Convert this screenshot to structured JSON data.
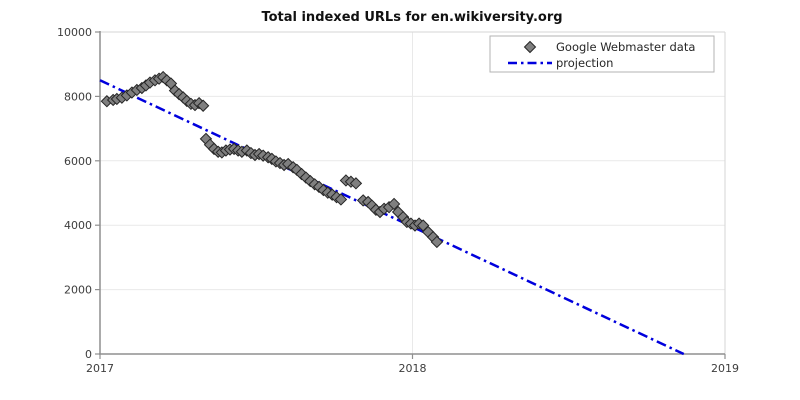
{
  "chart_data": {
    "type": "scatter",
    "title": "Total indexed URLs for en.wikiversity.org",
    "xlabel": "",
    "ylabel": "",
    "xlim": [
      2017,
      2019
    ],
    "ylim": [
      0,
      10000
    ],
    "x_ticks": [
      2017,
      2018,
      2019
    ],
    "y_ticks": [
      0,
      2000,
      4000,
      6000,
      8000,
      10000
    ],
    "grid": true,
    "legend_position": "upper right",
    "series": [
      {
        "name": "Google Webmaster data",
        "type": "scatter",
        "marker": "diamond",
        "marker_fill": "#7f7f7f",
        "marker_edge": "#262626",
        "points": [
          [
            2017.022,
            7850
          ],
          [
            2017.042,
            7890
          ],
          [
            2017.054,
            7920
          ],
          [
            2017.07,
            7960
          ],
          [
            2017.086,
            8030
          ],
          [
            2017.102,
            8120
          ],
          [
            2017.118,
            8200
          ],
          [
            2017.134,
            8260
          ],
          [
            2017.147,
            8340
          ],
          [
            2017.16,
            8430
          ],
          [
            2017.176,
            8500
          ],
          [
            2017.189,
            8550
          ],
          [
            2017.202,
            8600
          ],
          [
            2017.214,
            8500
          ],
          [
            2017.227,
            8400
          ],
          [
            2017.24,
            8180
          ],
          [
            2017.253,
            8070
          ],
          [
            2017.266,
            7970
          ],
          [
            2017.278,
            7860
          ],
          [
            2017.291,
            7770
          ],
          [
            2017.304,
            7730
          ],
          [
            2017.317,
            7790
          ],
          [
            2017.33,
            7710
          ],
          [
            2017.339,
            6680
          ],
          [
            2017.352,
            6500
          ],
          [
            2017.365,
            6370
          ],
          [
            2017.378,
            6280
          ],
          [
            2017.39,
            6260
          ],
          [
            2017.403,
            6320
          ],
          [
            2017.416,
            6350
          ],
          [
            2017.429,
            6370
          ],
          [
            2017.442,
            6320
          ],
          [
            2017.454,
            6280
          ],
          [
            2017.47,
            6320
          ],
          [
            2017.483,
            6240
          ],
          [
            2017.496,
            6180
          ],
          [
            2017.509,
            6210
          ],
          [
            2017.522,
            6160
          ],
          [
            2017.538,
            6110
          ],
          [
            2017.55,
            6060
          ],
          [
            2017.563,
            5980
          ],
          [
            2017.576,
            5930
          ],
          [
            2017.589,
            5870
          ],
          [
            2017.602,
            5900
          ],
          [
            2017.618,
            5800
          ],
          [
            2017.63,
            5720
          ],
          [
            2017.645,
            5590
          ],
          [
            2017.659,
            5480
          ],
          [
            2017.673,
            5370
          ],
          [
            2017.687,
            5270
          ],
          [
            2017.701,
            5190
          ],
          [
            2017.715,
            5090
          ],
          [
            2017.729,
            5010
          ],
          [
            2017.743,
            4950
          ],
          [
            2017.757,
            4870
          ],
          [
            2017.771,
            4800
          ],
          [
            2017.787,
            5390
          ],
          [
            2017.803,
            5350
          ],
          [
            2017.819,
            5300
          ],
          [
            2017.842,
            4770
          ],
          [
            2017.858,
            4720
          ],
          [
            2017.87,
            4610
          ],
          [
            2017.883,
            4480
          ],
          [
            2017.896,
            4410
          ],
          [
            2017.909,
            4510
          ],
          [
            2017.925,
            4560
          ],
          [
            2017.941,
            4660
          ],
          [
            2017.954,
            4410
          ],
          [
            2017.97,
            4250
          ],
          [
            2017.982,
            4100
          ],
          [
            2017.995,
            4050
          ],
          [
            2018.008,
            3990
          ],
          [
            2018.021,
            4050
          ],
          [
            2018.034,
            3990
          ],
          [
            2018.05,
            3790
          ],
          [
            2018.066,
            3630
          ],
          [
            2018.078,
            3480
          ]
        ]
      },
      {
        "name": "projection",
        "type": "line",
        "style": "dash-dot",
        "color": "#0000dd",
        "points": [
          [
            2017.0,
            8500
          ],
          [
            2018.868,
            0
          ]
        ]
      }
    ]
  }
}
